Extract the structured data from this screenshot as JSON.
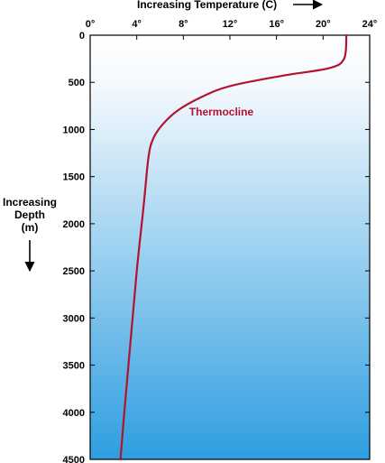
{
  "chart_data": {
    "type": "line",
    "xlabel": "Increasing Temperature (C)",
    "ylabel_lines": [
      "Increasing",
      "Depth",
      "(m)"
    ],
    "x_ticks": [
      0,
      4,
      8,
      12,
      16,
      20,
      24
    ],
    "x_tick_labels": [
      "0°",
      "4°",
      "8°",
      "12°",
      "16°",
      "20°",
      "24°"
    ],
    "y_ticks": [
      0,
      500,
      1000,
      1500,
      2000,
      2500,
      3000,
      3500,
      4000,
      4500
    ],
    "y_tick_labels": [
      "0",
      "500",
      "1000",
      "1500",
      "2000",
      "2500",
      "3000",
      "3500",
      "4000",
      "4500"
    ],
    "xlim": [
      0,
      24
    ],
    "ylim": [
      0,
      4500
    ],
    "y_inverted": true,
    "grid": false,
    "series": [
      {
        "x": [
          22.0,
          21.8,
          20.5,
          16.5,
          12.0,
          9.5,
          7.5,
          6.2,
          5.4,
          5.0,
          4.6,
          4.0,
          3.5,
          3.0,
          2.6
        ],
        "y": [
          0,
          250,
          350,
          430,
          540,
          660,
          800,
          950,
          1100,
          1300,
          1800,
          2500,
          3200,
          3900,
          4500
        ]
      }
    ],
    "annotations": [
      {
        "text": "Thermocline",
        "x": 8.5,
        "y": 850
      }
    ],
    "colors": {
      "line": "#b5122f",
      "annotation": "#b5122f",
      "gradient_top": "#ffffff",
      "gradient_bottom": "#2e9ee0",
      "axis": "#000000"
    }
  }
}
